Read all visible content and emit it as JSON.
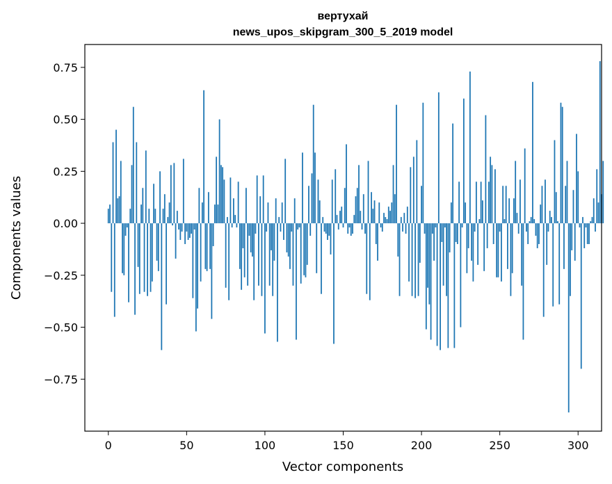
{
  "chart_data": {
    "type": "bar",
    "title": "вертухай",
    "subtitle": "news_upos_skipgram_300_5_2019 model",
    "xlabel": "Vector components",
    "ylabel": "Components values",
    "xlim": [
      -15,
      315
    ],
    "ylim": [
      -1.0,
      0.86
    ],
    "x_ticks": [
      0,
      50,
      100,
      150,
      200,
      250,
      300
    ],
    "x_tick_labels": [
      "0",
      "50",
      "100",
      "150",
      "200",
      "250",
      "300"
    ],
    "y_ticks": [
      0.75,
      0.5,
      0.25,
      0.0,
      -0.25,
      -0.5,
      -0.75
    ],
    "y_tick_labels": [
      "0.75",
      "0.50",
      "0.25",
      "0.00",
      "−0.25",
      "−0.50",
      "−0.75"
    ],
    "grid": false,
    "bar_color": "#1f77b4",
    "values": [
      0.07,
      0.09,
      -0.33,
      0.39,
      -0.45,
      0.45,
      0.12,
      0.13,
      0.3,
      -0.24,
      -0.25,
      -0.06,
      -0.02,
      -0.38,
      0.07,
      0.28,
      0.56,
      -0.44,
      0.39,
      -0.21,
      -0.34,
      0.09,
      0.17,
      -0.33,
      0.35,
      -0.35,
      0.07,
      -0.33,
      -0.28,
      0.19,
      0.07,
      -0.18,
      -0.23,
      0.25,
      -0.61,
      0.07,
      0.14,
      -0.39,
      0.03,
      0.1,
      0.28,
      -0.01,
      0.29,
      -0.17,
      0.06,
      -0.03,
      -0.08,
      -0.04,
      0.31,
      -0.1,
      -0.04,
      -0.08,
      -0.07,
      -0.05,
      -0.36,
      -0.03,
      -0.52,
      -0.41,
      0.17,
      -0.28,
      0.1,
      0.64,
      -0.22,
      -0.23,
      0.15,
      -0.22,
      -0.46,
      -0.11,
      0.09,
      0.32,
      0.09,
      0.5,
      0.28,
      0.27,
      0.21,
      -0.31,
      0.03,
      -0.37,
      0.22,
      -0.02,
      0.12,
      0.04,
      -0.02,
      0.2,
      -0.22,
      -0.32,
      -0.12,
      -0.26,
      0.17,
      -0.3,
      -0.06,
      -0.14,
      -0.16,
      -0.37,
      -0.05,
      0.23,
      -0.3,
      0.13,
      -0.35,
      0.23,
      -0.53,
      -0.04,
      0.1,
      -0.3,
      -0.13,
      -0.35,
      -0.18,
      0.12,
      -0.57,
      0.03,
      -0.04,
      0.1,
      -0.08,
      0.31,
      -0.14,
      -0.16,
      -0.22,
      -0.04,
      -0.3,
      0.12,
      -0.56,
      -0.03,
      -0.02,
      -0.29,
      0.34,
      -0.25,
      -0.26,
      -0.2,
      0.18,
      -0.06,
      0.24,
      0.57,
      0.34,
      -0.24,
      0.21,
      0.11,
      -0.34,
      0.03,
      -0.04,
      -0.05,
      -0.08,
      -0.06,
      -0.15,
      0.21,
      -0.58,
      0.26,
      0.04,
      -0.03,
      0.06,
      0.08,
      -0.02,
      0.17,
      0.38,
      -0.05,
      -0.02,
      -0.06,
      -0.05,
      0.04,
      0.13,
      0.17,
      0.28,
      0.06,
      -0.03,
      0.14,
      -0.05,
      -0.34,
      0.3,
      -0.37,
      0.15,
      0.07,
      0.11,
      -0.1,
      -0.18,
      0.1,
      -0.02,
      -0.04,
      0.05,
      0.03,
      0.02,
      0.08,
      0.06,
      0.1,
      0.28,
      0.14,
      0.57,
      -0.16,
      -0.35,
      0.03,
      -0.04,
      0.05,
      -0.05,
      0.08,
      -0.28,
      0.27,
      -0.35,
      0.32,
      -0.36,
      0.4,
      -0.35,
      -0.19,
      0.18,
      0.58,
      -0.05,
      -0.51,
      -0.31,
      -0.39,
      -0.56,
      -0.05,
      -0.18,
      -0.02,
      -0.59,
      0.63,
      -0.61,
      -0.09,
      -0.3,
      -0.02,
      -0.35,
      -0.6,
      -0.14,
      0.1,
      0.48,
      -0.6,
      -0.09,
      -0.1,
      0.2,
      -0.5,
      -0.02,
      0.6,
      0.1,
      -0.24,
      -0.12,
      0.73,
      -0.18,
      -0.28,
      -0.04,
      0.2,
      -0.2,
      0.02,
      0.2,
      0.11,
      -0.23,
      0.52,
      -0.12,
      0.2,
      0.32,
      0.28,
      -0.1,
      0.26,
      -0.26,
      -0.26,
      -0.04,
      -0.28,
      0.18,
      0.02,
      0.18,
      -0.22,
      0.12,
      -0.35,
      -0.24,
      0.12,
      0.3,
      0.05,
      -0.05,
      0.21,
      -0.3,
      -0.56,
      0.36,
      -0.04,
      -0.1,
      0.01,
      0.03,
      0.68,
      0.02,
      -0.06,
      -0.12,
      -0.1,
      0.09,
      0.18,
      -0.45,
      0.21,
      -0.2,
      -0.04,
      0.06,
      0.03,
      -0.4,
      0.4,
      0.15,
      0.01,
      -0.39,
      0.58,
      0.56,
      -0.22,
      0.18,
      0.3,
      -0.91,
      -0.35,
      -0.13,
      0.16,
      -0.18,
      0.43,
      0.25,
      -0.02,
      -0.7,
      0.03,
      -0.12,
      -0.02,
      -0.1,
      -0.1,
      0.01,
      0.03,
      0.12,
      -0.04,
      0.26,
      0.1,
      0.78,
      0.14,
      0.3
    ]
  }
}
